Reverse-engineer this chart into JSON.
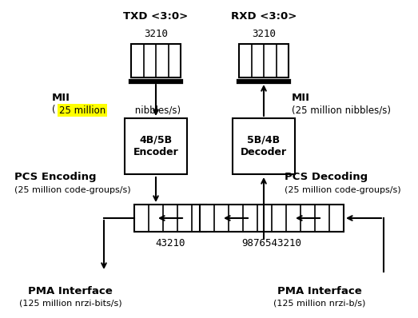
{
  "bg_color": "#ffffff",
  "txd_label": "TXD <3:0>",
  "rxd_label": "RXD <3:0>",
  "txd_bits": "3210",
  "rxd_bits": "3210",
  "mii_left_bold": "MII",
  "mii_left_highlight": "25 million",
  "mii_left_rest": " nibbles/s)",
  "mii_right_bold": "MII",
  "mii_right_sub": "(25 million nibbles/s)",
  "encoder_label": "4B/5B\nEncoder",
  "decoder_label": "5B/4B\nDecoder",
  "pcs_enc_bold": "PCS Encoding",
  "pcs_enc_sub": "(25 million co̲de-groups/s)",
  "pcs_dec_bold": "PCS Decoding",
  "pcs_dec_sub": "(25 million code-groups/s)",
  "lreg_bits": "43210",
  "rreg_bits": "9876543210",
  "pma_left_bold": "PMA Interface",
  "pma_left_sub": "(125 million nrzi-bits/s)",
  "pma_right_bold": "PMA Interface",
  "pma_right_sub": "(125 million nrzi-b/s)"
}
